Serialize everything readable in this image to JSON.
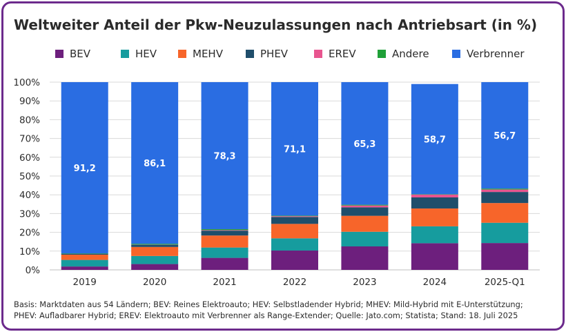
{
  "chart_data": {
    "type": "bar",
    "stacked": true,
    "title": "Weltweiter Anteil der Pkw-Neuzulassungen nach Antriebsart (in %)",
    "categories": [
      "2019",
      "2020",
      "2021",
      "2022",
      "2023",
      "2024",
      "2025-Q1"
    ],
    "ylim": [
      0,
      100
    ],
    "yticks": [
      "0%",
      "10%",
      "20%",
      "30%",
      "40%",
      "50%",
      "60%",
      "70%",
      "80%",
      "90%",
      "100%"
    ],
    "xlabel": "",
    "ylabel": "",
    "legend_position": "top",
    "series": [
      {
        "name": "BEV",
        "color": "#6d1f7d",
        "values": [
          1.8,
          3.1,
          6.4,
          10.3,
          12.5,
          14.2,
          14.3
        ]
      },
      {
        "name": "HEV",
        "color": "#169c9e",
        "values": [
          3.5,
          4.3,
          5.5,
          6.5,
          7.8,
          9.0,
          10.8
        ]
      },
      {
        "name": "MEHV",
        "color": "#f7652a",
        "values": [
          2.8,
          4.8,
          6.4,
          7.7,
          8.5,
          9.5,
          10.5
        ]
      },
      {
        "name": "PHEV",
        "color": "#1f4e6b",
        "values": [
          0.5,
          1.2,
          2.6,
          3.7,
          4.5,
          5.9,
          5.9
        ]
      },
      {
        "name": "EREV",
        "color": "#e8558f",
        "values": [
          0.0,
          0.1,
          0.3,
          0.4,
          1.0,
          1.5,
          1.3
        ]
      },
      {
        "name": "Andere",
        "color": "#1fa038",
        "values": [
          0.2,
          0.4,
          0.5,
          0.3,
          0.4,
          0.2,
          0.5
        ]
      },
      {
        "name": "Verbrenner",
        "color": "#2a6de2",
        "values": [
          91.2,
          86.1,
          78.3,
          71.1,
          65.3,
          58.7,
          56.7
        ]
      }
    ],
    "data_labels": {
      "series": "Verbrenner",
      "labels": [
        "91,2",
        "86,1",
        "78,3",
        "71,1",
        "65,3",
        "58,7",
        "56,7"
      ]
    }
  },
  "footnote": {
    "line1": "Basis: Marktdaten aus 54 Ländern; BEV: Reines Elektroauto; HEV: Selbstladender Hybrid; MHEV: Mild-Hybrid mit E-Unterstützung;",
    "line2": "PHEV: Aufladbarer Hybrid; EREV: Elektroauto mit Verbrenner als Range-Extender; Quelle: Jato.com; Statista; Stand: 18. Juli 2025"
  },
  "colors": {
    "frame": "#6c2a8c",
    "grid": "#d9d9d9",
    "text": "#2b2b2b"
  }
}
